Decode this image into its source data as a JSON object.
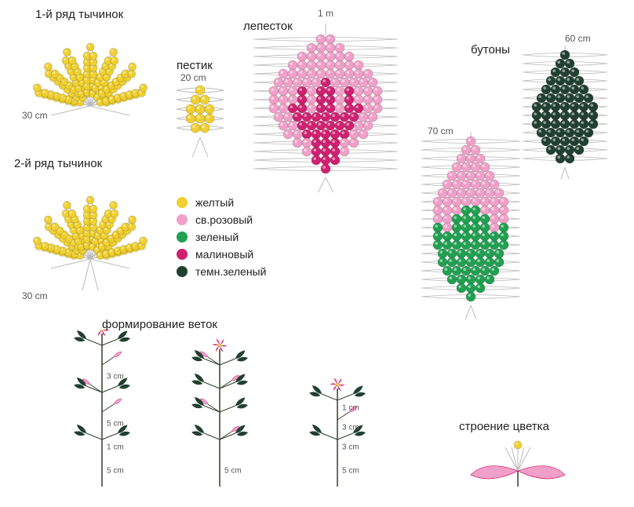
{
  "colors": {
    "yellow": "#f0d030",
    "light_pink": "#f0a0c8",
    "green": "#20a050",
    "crimson": "#d02070",
    "dark_green": "#204030",
    "wire": "#bbbbbb",
    "stem": "#304028"
  },
  "labels": {
    "stamens_row1": "1-й ряд тычинок",
    "stamens_row2": "2-й ряд тычинок",
    "pistil": "пестик",
    "petal": "лепесток",
    "buds": "бутоны",
    "branches_forming": "формирование веток",
    "flower_structure": "строение цветка",
    "wire_30cm": "30 cm",
    "wire_20cm": "20 cm",
    "wire_1m": "1 m",
    "wire_60cm": "60 cm",
    "wire_70cm": "70 cm",
    "branch_1cm": "1 cm",
    "branch_3cm": "3 cm",
    "branch_5cm": "5 cm"
  },
  "legend": [
    {
      "color_key": "yellow",
      "text": "желтый"
    },
    {
      "color_key": "light_pink",
      "text": "св.розовый"
    },
    {
      "color_key": "green",
      "text": "зеленый"
    },
    {
      "color_key": "crimson",
      "text": "малиновый"
    },
    {
      "color_key": "dark_green",
      "text": "темн.зеленый"
    }
  ],
  "stamens": {
    "count": 7,
    "beads_per_loop": 7,
    "loop_width": 20,
    "loop_height": 75,
    "bead_r": 5
  },
  "pistil": {
    "rows": [
      1,
      2,
      3,
      3,
      2
    ],
    "colors_per_row": [
      "yellow",
      "yellow",
      "yellow",
      "yellow",
      "yellow"
    ],
    "bead_r": 6
  },
  "petal": {
    "bead_r": 6,
    "rows": [
      {
        "n": 2,
        "c": [
          "lp",
          "lp"
        ]
      },
      {
        "n": 4,
        "c": [
          "lp",
          "lp",
          "lp",
          "lp"
        ]
      },
      {
        "n": 6,
        "c": [
          "lp",
          "lp",
          "lp",
          "lp",
          "lp",
          "lp"
        ]
      },
      {
        "n": 8,
        "c": [
          "lp",
          "lp",
          "lp",
          "lp",
          "lp",
          "lp",
          "lp",
          "lp"
        ]
      },
      {
        "n": 10,
        "c": [
          "lp",
          "lp",
          "lp",
          "lp",
          "lp",
          "lp",
          "lp",
          "lp",
          "lp",
          "lp"
        ]
      },
      {
        "n": 11,
        "c": [
          "lp",
          "lp",
          "lp",
          "lp",
          "lp",
          "cr",
          "lp",
          "lp",
          "lp",
          "lp",
          "lp"
        ]
      },
      {
        "n": 12,
        "c": [
          "lp",
          "lp",
          "lp",
          "cr",
          "lp",
          "cr",
          "cr",
          "lp",
          "cr",
          "lp",
          "lp",
          "lp"
        ]
      },
      {
        "n": 12,
        "c": [
          "lp",
          "lp",
          "lp",
          "cr",
          "lp",
          "cr",
          "cr",
          "lp",
          "cr",
          "lp",
          "lp",
          "lp"
        ]
      },
      {
        "n": 12,
        "c": [
          "lp",
          "lp",
          "cr",
          "cr",
          "lp",
          "cr",
          "cr",
          "lp",
          "cr",
          "cr",
          "lp",
          "lp"
        ]
      },
      {
        "n": 11,
        "c": [
          "lp",
          "lp",
          "cr",
          "cr",
          "cr",
          "cr",
          "cr",
          "cr",
          "cr",
          "lp",
          "lp"
        ]
      },
      {
        "n": 10,
        "c": [
          "lp",
          "lp",
          "cr",
          "cr",
          "cr",
          "cr",
          "cr",
          "cr",
          "lp",
          "lp"
        ]
      },
      {
        "n": 9,
        "c": [
          "lp",
          "lp",
          "cr",
          "cr",
          "cr",
          "cr",
          "cr",
          "lp",
          "lp"
        ]
      },
      {
        "n": 7,
        "c": [
          "lp",
          "lp",
          "cr",
          "cr",
          "cr",
          "lp",
          "lp"
        ]
      },
      {
        "n": 5,
        "c": [
          "lp",
          "cr",
          "cr",
          "cr",
          "lp"
        ]
      },
      {
        "n": 3,
        "c": [
          "cr",
          "cr",
          "cr"
        ]
      },
      {
        "n": 1,
        "c": [
          "cr"
        ]
      }
    ]
  },
  "bud_dark": {
    "bead_r": 6,
    "rows": [
      1,
      2,
      3,
      4,
      5,
      6,
      7,
      7,
      7,
      6,
      5,
      4,
      2
    ]
  },
  "bud_pink_green": {
    "bead_r": 6,
    "rows": [
      {
        "n": 1,
        "c": [
          "lp"
        ]
      },
      {
        "n": 2,
        "c": [
          "lp",
          "lp"
        ]
      },
      {
        "n": 3,
        "c": [
          "lp",
          "lp",
          "lp"
        ]
      },
      {
        "n": 4,
        "c": [
          "lp",
          "lp",
          "lp",
          "lp"
        ]
      },
      {
        "n": 5,
        "c": [
          "lp",
          "lp",
          "lp",
          "lp",
          "lp"
        ]
      },
      {
        "n": 6,
        "c": [
          "lp",
          "lp",
          "lp",
          "lp",
          "lp",
          "lp"
        ]
      },
      {
        "n": 7,
        "c": [
          "lp",
          "lp",
          "lp",
          "lp",
          "lp",
          "lp",
          "lp"
        ]
      },
      {
        "n": 8,
        "c": [
          "lp",
          "lp",
          "lp",
          "lp",
          "lp",
          "lp",
          "lp",
          "lp"
        ]
      },
      {
        "n": 8,
        "c": [
          "lp",
          "lp",
          "lp",
          "gr",
          "gr",
          "lp",
          "lp",
          "lp"
        ]
      },
      {
        "n": 8,
        "c": [
          "lp",
          "lp",
          "gr",
          "gr",
          "gr",
          "gr",
          "lp",
          "lp"
        ]
      },
      {
        "n": 8,
        "c": [
          "gr",
          "lp",
          "gr",
          "gr",
          "gr",
          "gr",
          "lp",
          "gr"
        ]
      },
      {
        "n": 8,
        "c": [
          "gr",
          "gr",
          "gr",
          "gr",
          "gr",
          "gr",
          "gr",
          "gr"
        ]
      },
      {
        "n": 8,
        "c": [
          "gr",
          "gr",
          "gr",
          "gr",
          "gr",
          "gr",
          "gr",
          "gr"
        ]
      },
      {
        "n": 7,
        "c": [
          "gr",
          "gr",
          "gr",
          "gr",
          "gr",
          "gr",
          "gr"
        ]
      },
      {
        "n": 7,
        "c": [
          "gr",
          "gr",
          "gr",
          "gr",
          "gr",
          "gr",
          "gr"
        ]
      },
      {
        "n": 6,
        "c": [
          "gr",
          "gr",
          "gr",
          "gr",
          "gr",
          "gr"
        ]
      },
      {
        "n": 5,
        "c": [
          "gr",
          "gr",
          "gr",
          "gr",
          "gr"
        ]
      },
      {
        "n": 3,
        "c": [
          "gr",
          "gr",
          "gr"
        ]
      },
      {
        "n": 1,
        "c": [
          "gr"
        ]
      }
    ]
  }
}
